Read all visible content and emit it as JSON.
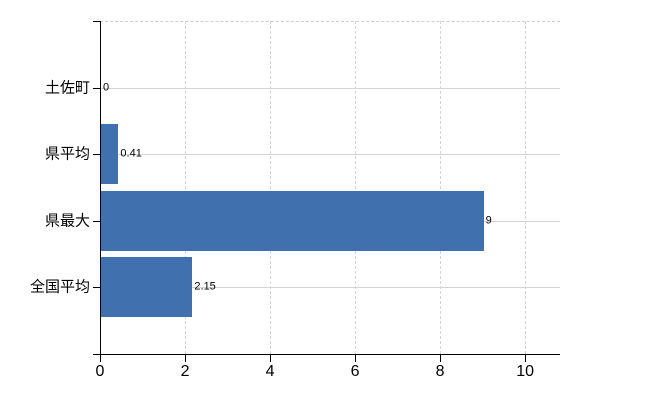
{
  "chart_data": {
    "type": "bar",
    "orientation": "horizontal",
    "title": "",
    "categories": [
      "土佐町",
      "県平均",
      "県最大",
      "全国平均"
    ],
    "values": [
      0,
      0.41,
      9,
      2.15
    ],
    "value_labels": [
      "0",
      "0.41",
      "9",
      "2.15"
    ],
    "x_ticks": [
      0,
      2,
      4,
      6,
      8,
      10
    ],
    "x_tick_labels": [
      "0",
      "2",
      "4",
      "6",
      "8",
      "10"
    ],
    "xlim": [
      0,
      10.82
    ],
    "grid": true,
    "legend": false,
    "bar_color": "#4170af",
    "grid_color": "#d4d4d4",
    "axis_color": "#000000",
    "text_color": "#000000",
    "background_color": "#ffffff"
  }
}
